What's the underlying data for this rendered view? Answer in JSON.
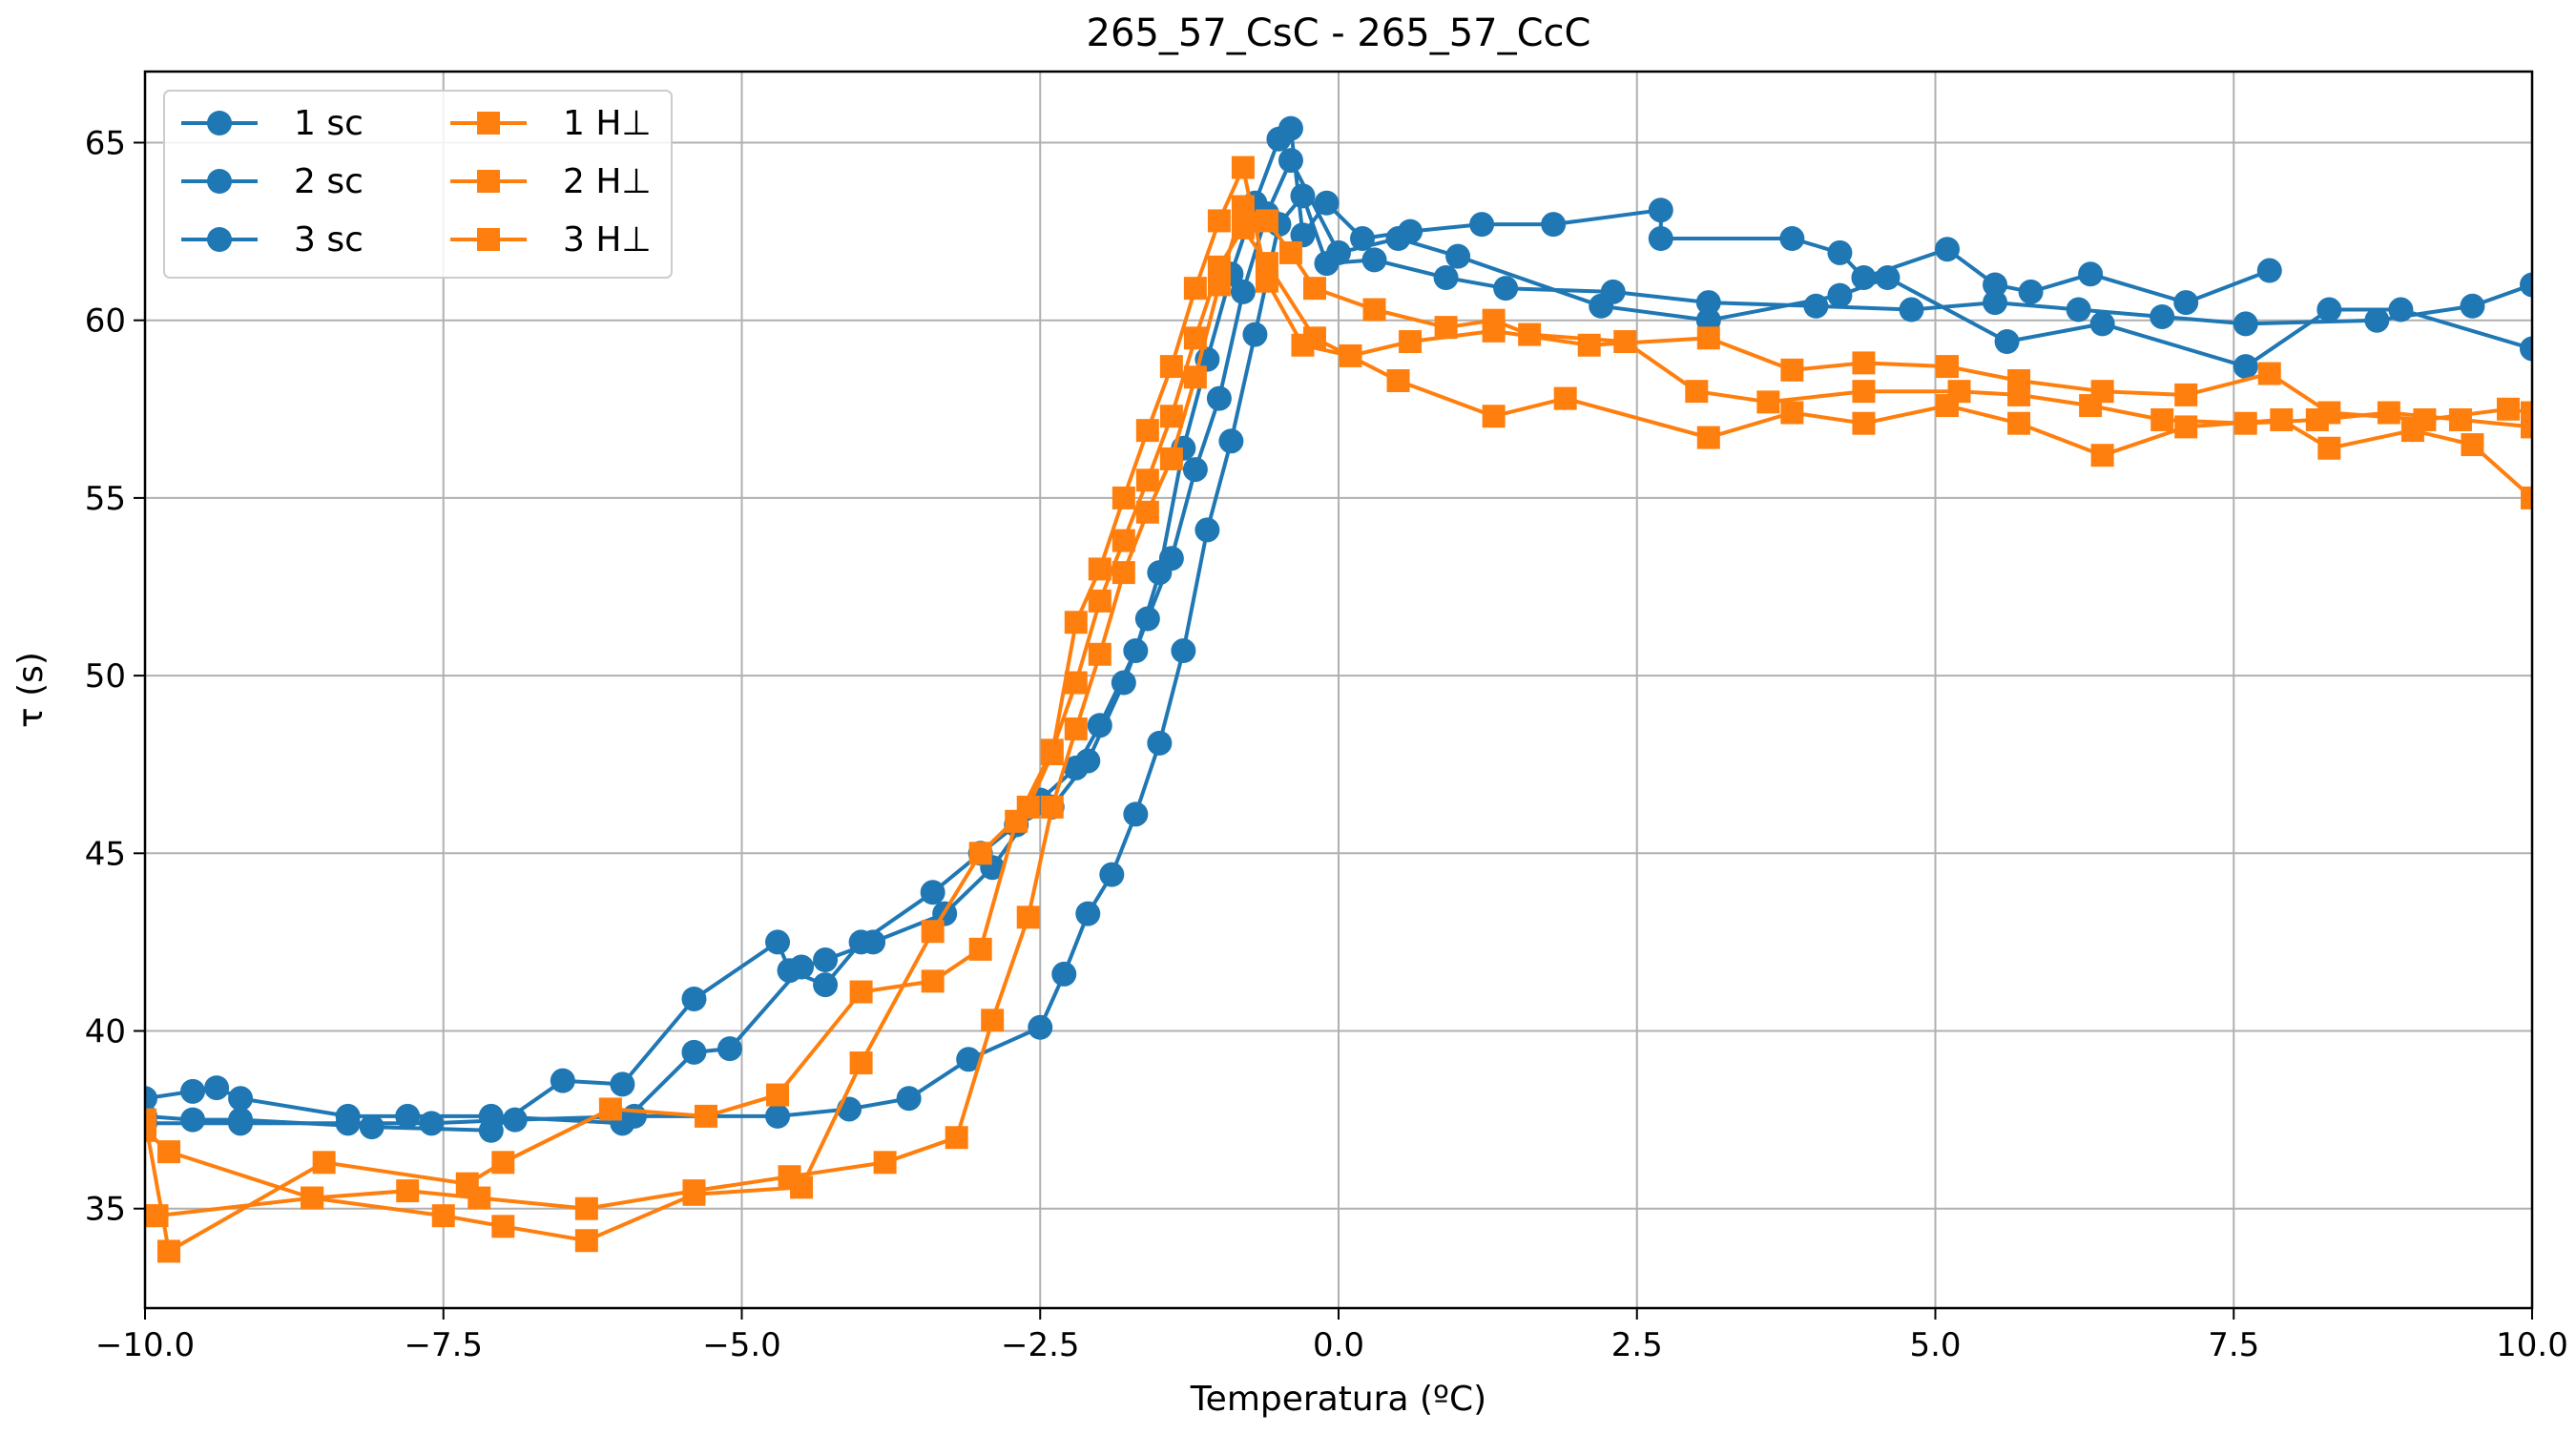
{
  "chart_data": {
    "type": "line",
    "title": "265_57_CsC - 265_57_CcC",
    "xlabel": "Temperatura (ºC)",
    "ylabel": "τ (s)",
    "xlim": [
      -10.0,
      10.0
    ],
    "ylim": [
      32.2,
      67.0
    ],
    "xticks": [
      -10.0,
      -7.5,
      -5.0,
      -2.5,
      0.0,
      2.5,
      5.0,
      7.5,
      10.0
    ],
    "xtick_labels": [
      "−10.0",
      "−7.5",
      "−5.0",
      "−2.5",
      "0.0",
      "2.5",
      "5.0",
      "7.5",
      "10.0"
    ],
    "yticks": [
      35,
      40,
      45,
      50,
      55,
      60,
      65
    ],
    "ytick_labels": [
      "35",
      "40",
      "45",
      "50",
      "55",
      "60",
      "65"
    ],
    "grid": true,
    "legend_position": "top-left",
    "colors": {
      "sc": "#1f77b4",
      "h": "#ff7f0e"
    },
    "series": [
      {
        "name": "1 sc",
        "marker": "circle",
        "color": "#1f77b4",
        "x": [
          -10.0,
          -9.6,
          -9.4,
          -9.2,
          -8.3,
          -7.8,
          -7.1,
          -6.0,
          -5.4,
          -5.1,
          -4.5,
          -4.3,
          -3.9,
          -3.3,
          -2.9,
          -2.5,
          -2.2,
          -2.0,
          -1.7,
          -1.5,
          -1.3,
          -1.1,
          -0.9,
          -0.7,
          -0.5,
          -0.4,
          -0.3,
          -0.1,
          0.2,
          0.6,
          1.2,
          1.8,
          2.7,
          2.7,
          3.8,
          4.2,
          4.4,
          5.1,
          5.5,
          5.8,
          6.3,
          7.1,
          7.8
        ],
        "y": [
          38.1,
          38.3,
          38.4,
          38.1,
          37.6,
          37.6,
          37.6,
          37.4,
          39.4,
          39.5,
          41.8,
          42.0,
          42.5,
          43.3,
          44.6,
          46.5,
          47.4,
          48.6,
          50.7,
          52.9,
          56.4,
          58.9,
          61.3,
          63.3,
          65.1,
          65.4,
          62.4,
          63.3,
          62.3,
          62.5,
          62.7,
          62.7,
          63.1,
          62.3,
          62.3,
          61.9,
          61.2,
          62.0,
          61.0,
          60.8,
          61.3,
          60.5,
          61.4
        ]
      },
      {
        "name": "2 sc",
        "marker": "circle",
        "color": "#1f77b4",
        "x": [
          -10.0,
          -9.6,
          -9.2,
          -8.1,
          -7.1,
          -6.5,
          -6.0,
          -5.4,
          -4.7,
          -4.6,
          -4.3,
          -4.0,
          -3.4,
          -3.0,
          -2.7,
          -2.4,
          -2.1,
          -1.8,
          -1.6,
          -1.4,
          -1.2,
          -1.0,
          -0.8,
          -0.6,
          -0.4,
          0.0,
          0.5,
          1.0,
          2.2,
          3.1,
          4.2,
          4.6,
          5.6,
          6.4,
          7.6,
          8.3,
          8.9,
          10.0
        ],
        "y": [
          37.6,
          37.5,
          37.5,
          37.3,
          37.2,
          38.6,
          38.5,
          40.9,
          42.5,
          41.7,
          41.3,
          42.5,
          43.9,
          45.0,
          45.8,
          46.3,
          47.6,
          49.8,
          51.6,
          53.3,
          55.8,
          57.8,
          60.8,
          63.0,
          64.5,
          61.9,
          62.3,
          61.8,
          60.4,
          60.0,
          60.7,
          61.2,
          59.4,
          59.9,
          58.7,
          60.3,
          60.3,
          59.2
        ]
      },
      {
        "name": "3 sc",
        "marker": "circle",
        "color": "#1f77b4",
        "x": [
          -10.0,
          -9.2,
          -8.3,
          -7.6,
          -6.9,
          -5.9,
          -4.7,
          -4.1,
          -3.6,
          -3.1,
          -2.5,
          -2.3,
          -2.1,
          -1.9,
          -1.7,
          -1.5,
          -1.3,
          -1.1,
          -0.9,
          -0.7,
          -0.5,
          -0.3,
          -0.1,
          0.3,
          0.9,
          1.4,
          2.3,
          3.1,
          4.0,
          4.8,
          5.5,
          6.2,
          6.9,
          7.6,
          8.7,
          9.5,
          10.0
        ],
        "y": [
          37.4,
          37.4,
          37.4,
          37.4,
          37.5,
          37.6,
          37.6,
          37.8,
          38.1,
          39.2,
          40.1,
          41.6,
          43.3,
          44.4,
          46.1,
          48.1,
          50.7,
          54.1,
          56.6,
          59.6,
          62.7,
          63.5,
          61.6,
          61.7,
          61.2,
          60.9,
          60.8,
          60.5,
          60.4,
          60.3,
          60.5,
          60.3,
          60.1,
          59.9,
          60.0,
          60.4,
          61.0
        ]
      },
      {
        "name": "1 H⊥",
        "marker": "square",
        "color": "#ff7f0e",
        "x": [
          -10.0,
          -9.8,
          -8.6,
          -7.8,
          -7.2,
          -6.3,
          -5.4,
          -4.6,
          -3.8,
          -3.2,
          -2.9,
          -2.6,
          -2.4,
          -2.2,
          -2.0,
          -1.8,
          -1.6,
          -1.4,
          -1.2,
          -1.0,
          -0.8,
          -0.6,
          -0.4,
          -0.2,
          0.3,
          0.9,
          1.3,
          1.6,
          2.4,
          3.0,
          3.6,
          4.4,
          5.2,
          5.7,
          6.3,
          6.9,
          7.6,
          8.2,
          8.8,
          9.4,
          10.0
        ],
        "y": [
          37.2,
          36.6,
          35.3,
          35.5,
          35.3,
          35.0,
          35.5,
          35.9,
          36.3,
          37.0,
          40.3,
          43.2,
          46.3,
          48.5,
          50.6,
          52.9,
          54.6,
          56.1,
          58.4,
          61.0,
          63.2,
          62.8,
          61.9,
          60.9,
          60.3,
          59.8,
          60.0,
          59.6,
          59.4,
          58.0,
          57.7,
          58.0,
          58.0,
          57.9,
          57.6,
          57.2,
          57.1,
          57.2,
          57.4,
          57.2,
          57.0
        ]
      },
      {
        "name": "2 H⊥",
        "marker": "square",
        "color": "#ff7f0e",
        "x": [
          -10.0,
          -9.9,
          -8.6,
          -7.5,
          -7.0,
          -6.3,
          -5.4,
          -4.5,
          -4.0,
          -3.4,
          -3.0,
          -2.6,
          -2.4,
          -2.2,
          -2.0,
          -1.8,
          -1.6,
          -1.4,
          -1.2,
          -1.0,
          -0.8,
          -0.6,
          -0.3,
          0.1,
          0.6,
          1.3,
          2.1,
          3.1,
          3.8,
          4.4,
          5.1,
          5.7,
          6.4,
          7.1,
          7.8,
          8.3,
          9.1,
          9.8,
          10.0
        ],
        "y": [
          34.8,
          34.8,
          35.3,
          34.8,
          34.5,
          34.1,
          35.4,
          35.6,
          39.1,
          42.8,
          45.0,
          46.3,
          47.8,
          51.5,
          53.0,
          55.0,
          56.9,
          58.7,
          60.9,
          62.8,
          64.3,
          61.1,
          59.3,
          59.0,
          59.4,
          59.7,
          59.3,
          59.5,
          58.6,
          58.8,
          58.7,
          58.3,
          58.0,
          57.9,
          58.5,
          57.4,
          57.2,
          57.5,
          57.4
        ]
      },
      {
        "name": "3 H⊥",
        "marker": "square",
        "color": "#ff7f0e",
        "x": [
          -10.0,
          -9.8,
          -8.5,
          -7.3,
          -7.0,
          -6.1,
          -5.3,
          -4.7,
          -4.0,
          -3.4,
          -3.0,
          -2.7,
          -2.4,
          -2.2,
          -2.0,
          -1.8,
          -1.6,
          -1.4,
          -1.2,
          -1.0,
          -0.8,
          -0.6,
          -0.2,
          0.5,
          1.3,
          1.9,
          3.1,
          3.8,
          4.4,
          5.1,
          5.7,
          6.4,
          7.1,
          7.9,
          8.3,
          9.0,
          9.5,
          10.0
        ],
        "y": [
          37.5,
          33.8,
          36.3,
          35.7,
          36.3,
          37.8,
          37.6,
          38.2,
          41.1,
          41.4,
          42.3,
          45.9,
          47.9,
          49.8,
          52.1,
          53.8,
          55.5,
          57.3,
          59.5,
          61.5,
          62.6,
          61.6,
          59.5,
          58.3,
          57.3,
          57.8,
          56.7,
          57.4,
          57.1,
          57.6,
          57.1,
          56.2,
          57.0,
          57.2,
          56.4,
          56.9,
          56.5,
          55.0
        ]
      }
    ]
  }
}
